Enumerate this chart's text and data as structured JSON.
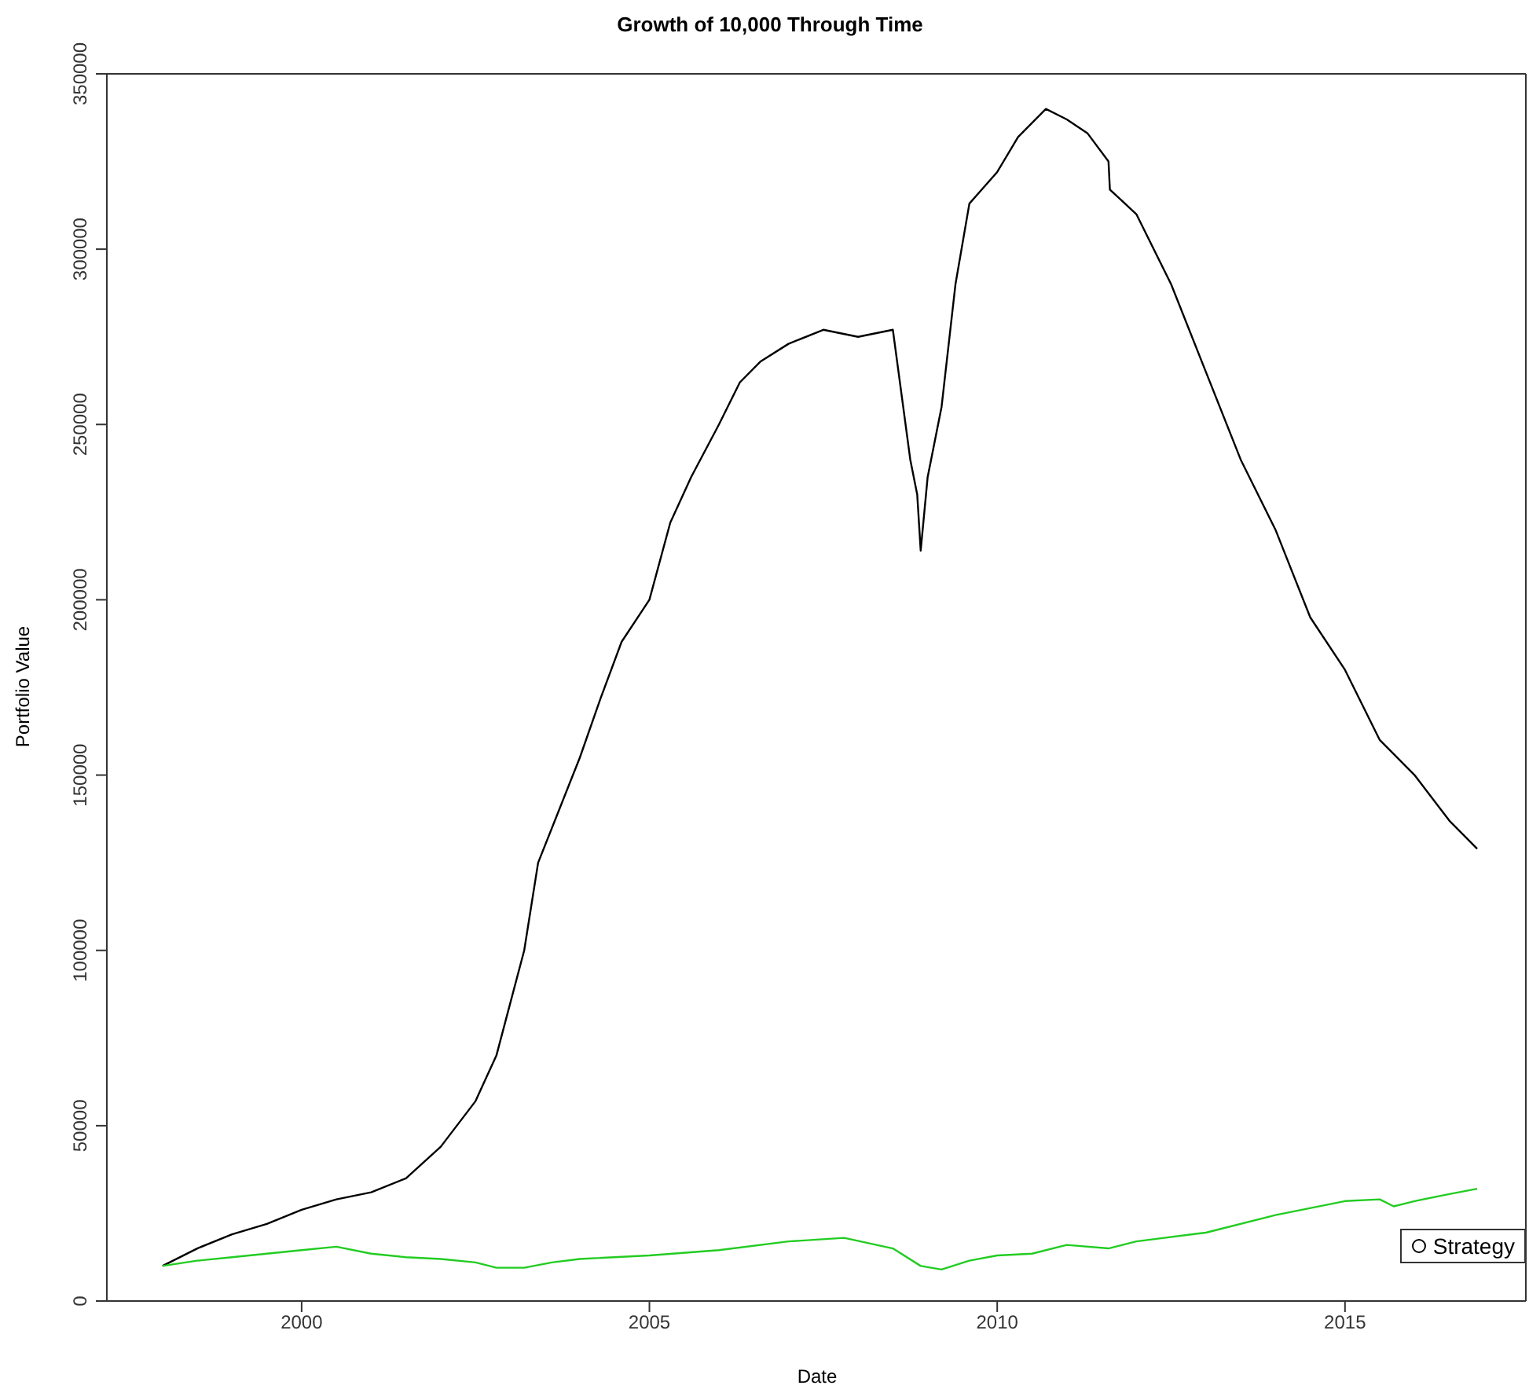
{
  "chart_data": {
    "type": "line",
    "title": "Growth of 10,000 Through Time",
    "xlabel": "Date",
    "ylabel": "Portfolio Value",
    "xlim": [
      1997.2,
      2017.6
    ],
    "xticks": [
      2000,
      2005,
      2010,
      2015
    ],
    "ylim": [
      0,
      350000
    ],
    "yticks": [
      0,
      50000,
      100000,
      150000,
      200000,
      250000,
      300000,
      350000
    ],
    "legend": "bottom right",
    "series": [
      {
        "name": "Strategy",
        "color": "#000000",
        "x": [
          1998.0,
          1998.5,
          1999.0,
          1999.5,
          2000.0,
          2000.5,
          2001.0,
          2001.5,
          2002.0,
          2002.5,
          2002.8,
          2003.0,
          2003.2,
          2003.4,
          2003.7,
          2004.0,
          2004.3,
          2004.6,
          2005.0,
          2005.3,
          2005.6,
          2006.0,
          2006.3,
          2006.6,
          2007.0,
          2007.5,
          2008.0,
          2008.5,
          2008.75,
          2008.85,
          2008.9,
          2009.0,
          2009.2,
          2009.4,
          2009.6,
          2010.0,
          2010.3,
          2010.7,
          2011.0,
          2011.3,
          2011.6,
          2011.62,
          2012.0,
          2012.5,
          2013.0,
          2013.5,
          2014.0,
          2014.5,
          2015.0,
          2015.5,
          2016.0,
          2016.5,
          2016.9
        ],
        "values": [
          10000,
          15000,
          19000,
          22000,
          26000,
          29000,
          31000,
          35000,
          44000,
          57000,
          70000,
          85000,
          100000,
          125000,
          140000,
          155000,
          172000,
          188000,
          200000,
          222000,
          235000,
          250000,
          262000,
          268000,
          273000,
          277000,
          275000,
          277000,
          240000,
          230000,
          214000,
          235000,
          255000,
          290000,
          313000,
          322000,
          332000,
          340000,
          337000,
          333000,
          325000,
          317000,
          310000,
          290000,
          265000,
          240000,
          220000,
          195000,
          180000,
          160000,
          150000,
          137000,
          129000
        ]
      },
      {
        "color": "#22cc22",
        "x": [
          1998.0,
          1998.5,
          1999.0,
          1999.5,
          2000.0,
          2000.5,
          2001.0,
          2001.5,
          2002.0,
          2002.5,
          2002.8,
          2003.2,
          2003.6,
          2004.0,
          2005.0,
          2006.0,
          2007.0,
          2007.8,
          2008.5,
          2008.9,
          2009.2,
          2009.6,
          2010.0,
          2010.5,
          2011.0,
          2011.6,
          2012.0,
          2013.0,
          2014.0,
          2015.0,
          2015.5,
          2015.7,
          2016.0,
          2016.5,
          2016.9
        ],
        "values": [
          10000,
          11500,
          12500,
          13500,
          14500,
          15500,
          13500,
          12500,
          12000,
          11000,
          9500,
          9500,
          11000,
          12000,
          13000,
          14500,
          17000,
          18000,
          15000,
          10000,
          9000,
          11500,
          13000,
          13500,
          16000,
          15000,
          17000,
          19500,
          24500,
          28500,
          29000,
          27000,
          28500,
          30500,
          32000
        ]
      }
    ]
  }
}
